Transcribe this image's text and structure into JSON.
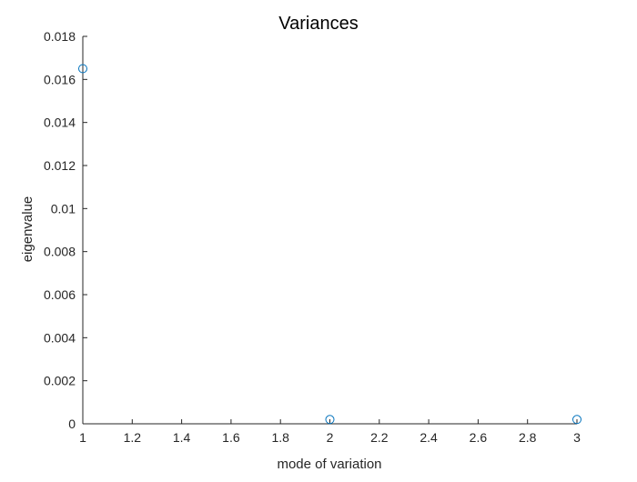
{
  "colors": {
    "background": "#ffffff",
    "axis": "#262626",
    "marker": "#0072bd"
  },
  "chart_data": {
    "type": "scatter",
    "title": "Variances",
    "xlabel": "mode of variation",
    "ylabel": "eigenvalue",
    "xlim": [
      1,
      3
    ],
    "ylim": [
      0,
      0.018
    ],
    "grid": false,
    "legend": "none",
    "marker": "circle-open",
    "x_ticks": [
      "1",
      "1.2",
      "1.4",
      "1.6",
      "1.8",
      "2",
      "2.2",
      "2.4",
      "2.6",
      "2.8",
      "3"
    ],
    "y_ticks": [
      "0",
      "0.002",
      "0.004",
      "0.006",
      "0.008",
      "0.01",
      "0.012",
      "0.014",
      "0.016",
      "0.018"
    ],
    "series": [
      {
        "x": [
          1,
          2,
          3
        ],
        "y": [
          0.0165,
          0.0002,
          0.0002
        ]
      }
    ]
  }
}
